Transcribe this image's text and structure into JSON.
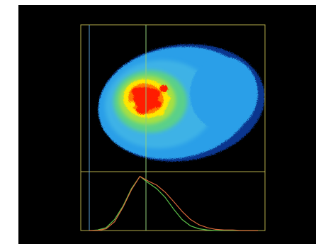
{
  "view": {
    "background": "#000000",
    "frame_color": "#b5ad4a",
    "crosshair_vertical_color": "#8fd07a",
    "marker_line_color": "#5aa0d8"
  },
  "heatmap": {
    "colormap": [
      "#0a3fa8",
      "#2a9fe8",
      "#4fc3e6",
      "#5ad08a",
      "#a8e040",
      "#ffe600",
      "#ff7a00",
      "#ff1a00"
    ],
    "beam_shape": "elliptical spot, peak left of center, tail extending to the right"
  },
  "profile": {
    "series": [
      {
        "color": "#5cc24a",
        "x": [
          0,
          0.05,
          0.1,
          0.15,
          0.2,
          0.25,
          0.3,
          0.35,
          0.4,
          0.45,
          0.5,
          0.55,
          0.6,
          0.65,
          0.7,
          0.75,
          0.8,
          0.85,
          0.9,
          0.95,
          1.0
        ],
        "values": [
          0.0,
          0.01,
          0.05,
          0.19,
          0.42,
          0.72,
          0.93,
          0.82,
          0.72,
          0.57,
          0.37,
          0.19,
          0.08,
          0.03,
          0.01,
          0.0,
          0.0,
          0.0,
          0.0,
          0.0,
          0.0
        ]
      },
      {
        "color": "#d9683a",
        "x": [
          0,
          0.05,
          0.1,
          0.15,
          0.2,
          0.25,
          0.3,
          0.35,
          0.4,
          0.45,
          0.5,
          0.55,
          0.6,
          0.65,
          0.7,
          0.75,
          0.8,
          0.85,
          0.9,
          0.95,
          1.0
        ],
        "values": [
          0.0,
          0.0,
          0.03,
          0.15,
          0.4,
          0.7,
          0.93,
          0.85,
          0.78,
          0.66,
          0.5,
          0.33,
          0.19,
          0.1,
          0.05,
          0.02,
          0.01,
          0.01,
          0.0,
          0.0,
          0.0
        ]
      }
    ]
  }
}
